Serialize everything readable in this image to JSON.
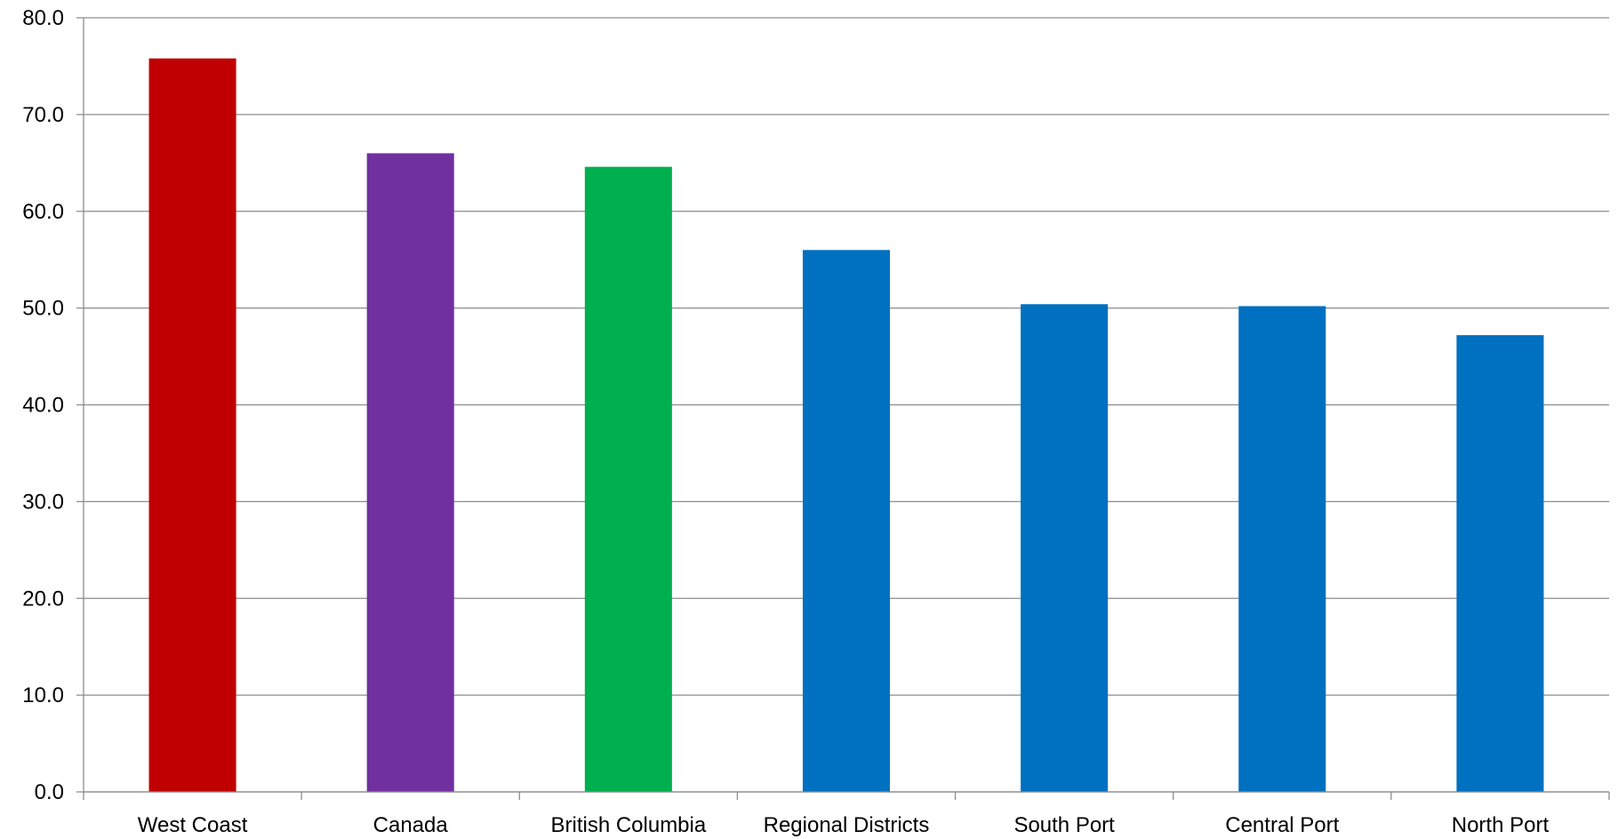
{
  "chart_data": {
    "type": "bar",
    "categories": [
      "West Coast",
      "Canada",
      "British Columbia",
      "Regional Districts",
      "South Port",
      "Central Port",
      "North Port"
    ],
    "values": [
      75.8,
      66.0,
      64.6,
      56.0,
      50.4,
      50.2,
      47.2
    ],
    "colors": [
      "#c00000",
      "#7030a0",
      "#00b050",
      "#0070c0",
      "#0070c0",
      "#0070c0",
      "#0070c0"
    ],
    "yticks": [
      "0.0",
      "10.0",
      "20.0",
      "30.0",
      "40.0",
      "50.0",
      "60.0",
      "70.0",
      "80.0"
    ],
    "ylim": [
      0,
      80
    ],
    "grid": true,
    "legend": "none"
  }
}
